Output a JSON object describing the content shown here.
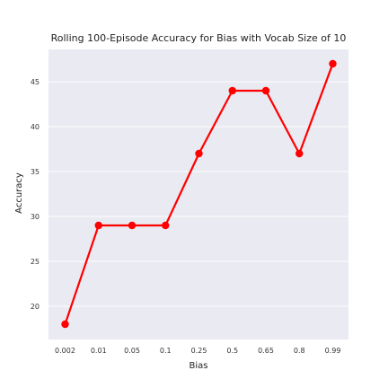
{
  "chart_data": {
    "type": "line",
    "title": "Rolling 100-Episode Accuracy for Bias with Vocab Size of 10",
    "xlabel": "Bias",
    "ylabel": "Accuracy",
    "categories": [
      "0.002",
      "0.01",
      "0.05",
      "0.1",
      "0.25",
      "0.5",
      "0.65",
      "0.8",
      "0.99"
    ],
    "values": [
      18,
      29,
      29,
      29,
      37,
      44,
      44,
      37,
      47
    ],
    "ylim": [
      16.3,
      48.6
    ],
    "yticks": [
      20,
      25,
      30,
      35,
      40,
      45
    ],
    "grid": true,
    "color": "#ff0000",
    "background": "#eaeaf2"
  }
}
